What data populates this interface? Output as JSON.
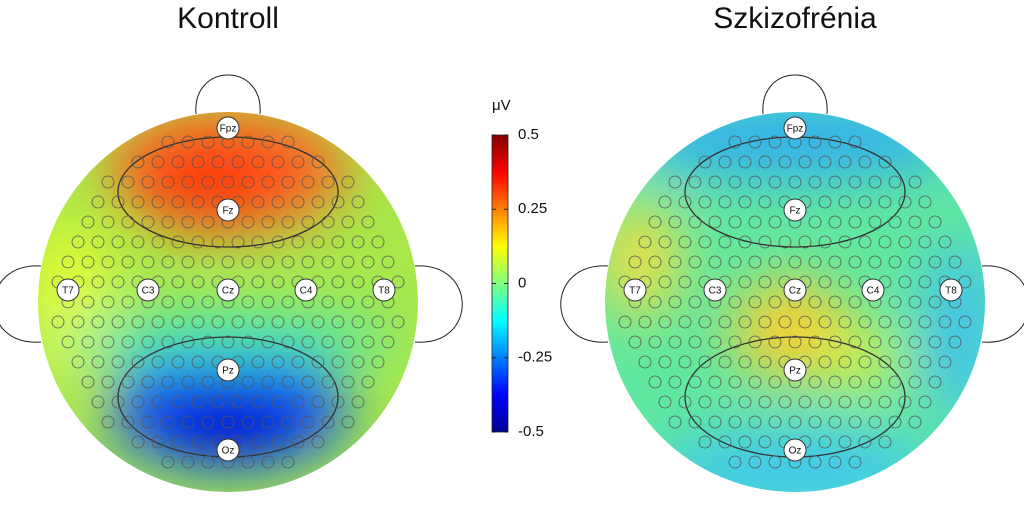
{
  "panels": [
    {
      "title": "Kontroll",
      "electrodes": [
        "Fpz",
        "Fz",
        "T7",
        "C3",
        "Cz",
        "C4",
        "T8",
        "Pz",
        "Oz"
      ]
    },
    {
      "title": "Szkizofrénia",
      "electrodes": [
        "Fpz",
        "Fz",
        "T7",
        "C3",
        "Cz",
        "C4",
        "T8",
        "Pz",
        "Oz"
      ]
    }
  ],
  "colorbar": {
    "label": "μV",
    "lim": [
      -0.5,
      0.5
    ],
    "ticks": [
      0.5,
      0.25,
      0,
      -0.25,
      -0.5
    ]
  }
}
